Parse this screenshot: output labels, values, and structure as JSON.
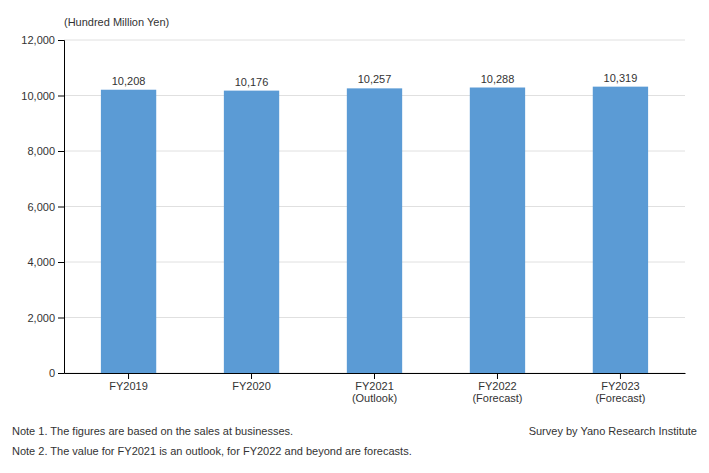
{
  "chart_data": {
    "type": "bar",
    "categories": [
      "FY2019",
      "FY2020",
      "FY2021\n(Outlook)",
      "FY2022\n(Forecast)",
      "FY2023\n(Forecast)"
    ],
    "values": [
      10208,
      10176,
      10257,
      10288,
      10319
    ],
    "value_labels": [
      "10,208",
      "10,176",
      "10,257",
      "10,288",
      "10,319"
    ],
    "color": "#5B9BD5",
    "ylabel": "(Hundred Million Yen)",
    "ylim": [
      0,
      12000
    ],
    "yticks": [
      0,
      {
        "value": 2000,
        "label": "2,000"
      },
      {
        "value": 4000,
        "label": "4,000"
      },
      {
        "value": 6000,
        "label": "6,000"
      },
      {
        "value": 8000,
        "label": "8,000"
      },
      {
        "value": 10000,
        "label": "10,000"
      },
      {
        "value": 12000,
        "label": "12,000"
      }
    ],
    "grid": true,
    "data_labels": true,
    "annotations": [
      "Note 1. The figures are based on the sales at businesses.",
      "Note 2. The value for FY2021 is an outlook, for FY2022 and beyond are forecasts.",
      "Survey by Yano Research Institute"
    ]
  }
}
